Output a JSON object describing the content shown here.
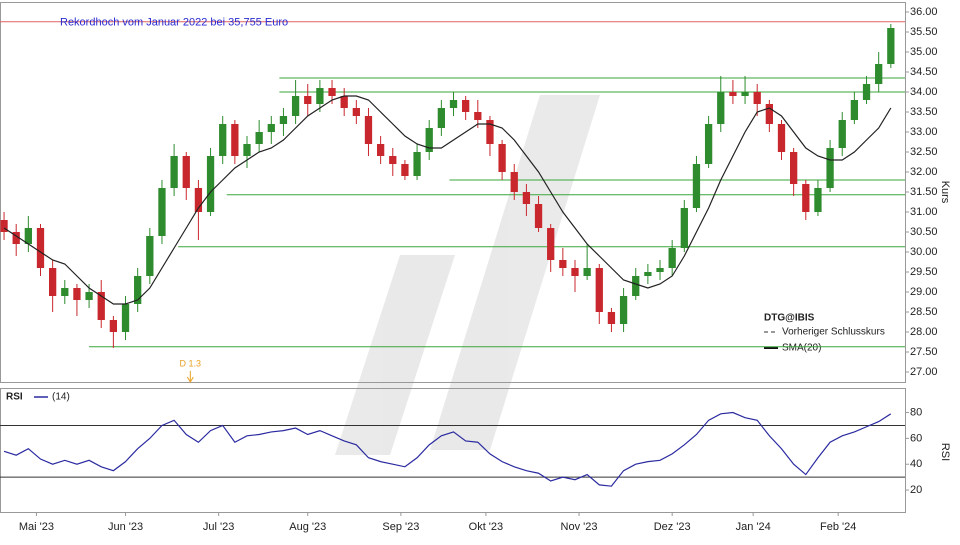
{
  "chart_data": {
    "type": "candlestick",
    "xlim": [
      0,
      223.5
    ],
    "xticks": [
      {
        "value": 9,
        "label": "Mai '23"
      },
      {
        "value": 31,
        "label": "Jun '23"
      },
      {
        "value": 54,
        "label": "Jul '23"
      },
      {
        "value": 76,
        "label": "Aug '23"
      },
      {
        "value": 99,
        "label": "Sep '23"
      },
      {
        "value": 120,
        "label": "Okt '23"
      },
      {
        "value": 143,
        "label": "Nov '23"
      },
      {
        "value": 166,
        "label": "Dez '23"
      },
      {
        "value": 186,
        "label": "Jan '24"
      },
      {
        "value": 207,
        "label": "Feb '24"
      }
    ],
    "ylim": [
      26.75,
      36.25
    ],
    "yticks": [
      {
        "value": 27,
        "label": "27.00"
      },
      {
        "value": 27.5,
        "label": "27.50"
      },
      {
        "value": 28,
        "label": "28.00"
      },
      {
        "value": 28.5,
        "label": "28.50"
      },
      {
        "value": 29,
        "label": "29.00"
      },
      {
        "value": 29.5,
        "label": "29.50"
      },
      {
        "value": 30,
        "label": "30.00"
      },
      {
        "value": 30.5,
        "label": "30.50"
      },
      {
        "value": 31,
        "label": "31.00"
      },
      {
        "value": 31.5,
        "label": "31.50"
      },
      {
        "value": 32,
        "label": "32.00"
      },
      {
        "value": 32.5,
        "label": "32.50"
      },
      {
        "value": 33,
        "label": "33.00"
      },
      {
        "value": 33.5,
        "label": "33.50"
      },
      {
        "value": 34,
        "label": "34.00"
      },
      {
        "value": 34.5,
        "label": "34.50"
      },
      {
        "value": 35,
        "label": "35.00"
      },
      {
        "value": 35.5,
        "label": "35.50"
      },
      {
        "value": 36,
        "label": "36.00"
      }
    ],
    "ylabel": "Kurs",
    "up_color": "#2e8b2e",
    "down_color": "#c8282d",
    "x": [
      1,
      4,
      7,
      10,
      13,
      16,
      19,
      22,
      25,
      28,
      31,
      34,
      37,
      40,
      43,
      46,
      49,
      52,
      55,
      58,
      61,
      64,
      67,
      70,
      73,
      76,
      79,
      82,
      85,
      88,
      91,
      94,
      97,
      100,
      103,
      106,
      109,
      112,
      115,
      118,
      121,
      124,
      127,
      130,
      133,
      136,
      139,
      142,
      145,
      148,
      151,
      154,
      157,
      160,
      163,
      166,
      169,
      172,
      175,
      178,
      181,
      184,
      187,
      190,
      193,
      196,
      199,
      202,
      205,
      208,
      211,
      214,
      217,
      220
    ],
    "open": [
      30.8,
      30.5,
      30.2,
      30.6,
      29.6,
      28.9,
      29.1,
      28.8,
      29.0,
      28.3,
      28.0,
      28.7,
      29.4,
      30.4,
      31.6,
      32.4,
      31.6,
      31.0,
      32.4,
      33.2,
      32.4,
      32.7,
      33.0,
      33.2,
      33.4,
      33.9,
      33.7,
      34.1,
      33.9,
      33.6,
      33.4,
      32.7,
      32.4,
      32.2,
      31.9,
      32.5,
      33.1,
      33.6,
      33.8,
      33.5,
      33.3,
      32.7,
      32.0,
      31.5,
      31.2,
      30.6,
      29.8,
      29.6,
      29.4,
      29.6,
      28.5,
      28.2,
      28.9,
      29.4,
      29.5,
      29.6,
      30.1,
      31.1,
      32.2,
      33.2,
      34.0,
      33.9,
      34.0,
      33.7,
      33.2,
      32.5,
      31.7,
      31.0,
      31.6,
      32.6,
      33.3,
      33.8,
      34.2,
      34.7
    ],
    "high": [
      31.0,
      30.7,
      30.9,
      30.7,
      29.8,
      29.3,
      29.2,
      29.2,
      29.3,
      28.4,
      28.9,
      29.6,
      30.6,
      31.8,
      32.7,
      32.5,
      31.8,
      32.6,
      33.4,
      33.3,
      32.9,
      33.3,
      33.4,
      33.6,
      34.3,
      34.2,
      34.3,
      34.3,
      34.1,
      33.8,
      33.6,
      32.9,
      32.6,
      32.3,
      32.7,
      33.3,
      33.8,
      34.0,
      33.9,
      33.8,
      33.4,
      32.8,
      32.2,
      31.7,
      31.4,
      30.7,
      30.1,
      29.8,
      30.2,
      29.7,
      28.6,
      29.1,
      29.6,
      29.7,
      29.8,
      30.3,
      31.3,
      32.4,
      33.4,
      34.4,
      34.3,
      34.4,
      34.2,
      33.8,
      33.3,
      32.6,
      31.8,
      31.8,
      32.8,
      33.5,
      34.0,
      34.4,
      35.0,
      35.7
    ],
    "low": [
      30.3,
      29.9,
      30.0,
      29.4,
      28.5,
      28.7,
      28.4,
      28.6,
      28.1,
      27.6,
      27.8,
      28.5,
      29.2,
      30.2,
      31.4,
      31.3,
      30.3,
      30.9,
      32.2,
      32.2,
      32.1,
      32.5,
      32.7,
      32.9,
      33.2,
      33.4,
      33.5,
      33.7,
      33.4,
      33.2,
      32.4,
      32.2,
      31.9,
      31.8,
      31.8,
      32.3,
      32.9,
      33.4,
      33.3,
      33.1,
      32.4,
      31.8,
      31.3,
      30.9,
      30.5,
      29.5,
      29.4,
      29.0,
      29.3,
      28.2,
      28.0,
      28.0,
      28.8,
      29.2,
      29.3,
      29.4,
      30.0,
      31.0,
      32.1,
      33.0,
      33.7,
      33.7,
      33.4,
      33.0,
      32.3,
      31.4,
      30.8,
      30.9,
      31.5,
      32.4,
      33.2,
      33.7,
      34.0,
      34.6
    ],
    "close": [
      30.5,
      30.2,
      30.6,
      29.6,
      28.9,
      29.1,
      28.8,
      29.0,
      28.3,
      28.0,
      28.7,
      29.4,
      30.4,
      31.6,
      32.4,
      31.6,
      31.0,
      32.4,
      33.2,
      32.4,
      32.7,
      33.0,
      33.2,
      33.4,
      33.9,
      33.7,
      34.1,
      33.9,
      33.6,
      33.4,
      32.7,
      32.4,
      32.2,
      31.9,
      32.5,
      33.1,
      33.6,
      33.8,
      33.5,
      33.3,
      32.7,
      32.0,
      31.5,
      31.2,
      30.6,
      29.8,
      29.6,
      29.4,
      29.6,
      28.5,
      28.2,
      28.9,
      29.4,
      29.5,
      29.6,
      30.1,
      31.1,
      32.2,
      33.2,
      34.0,
      33.9,
      34.0,
      33.7,
      33.2,
      32.5,
      31.7,
      31.0,
      31.6,
      32.6,
      33.3,
      33.8,
      34.2,
      34.7,
      35.6
    ],
    "sma": {
      "name": "SMA(20)",
      "color": "#222222",
      "values": [
        30.6,
        30.4,
        30.2,
        30.0,
        29.8,
        29.7,
        29.4,
        29.1,
        28.9,
        28.7,
        28.7,
        28.8,
        29.1,
        29.6,
        30.1,
        30.6,
        31.1,
        31.5,
        31.8,
        32.1,
        32.3,
        32.5,
        32.6,
        32.8,
        33.1,
        33.4,
        33.6,
        33.8,
        33.9,
        33.9,
        33.8,
        33.5,
        33.2,
        32.9,
        32.7,
        32.6,
        32.6,
        32.8,
        33.0,
        33.2,
        33.2,
        33.1,
        32.8,
        32.4,
        32.0,
        31.5,
        31.0,
        30.6,
        30.2,
        29.9,
        29.6,
        29.3,
        29.2,
        29.1,
        29.2,
        29.4,
        29.9,
        30.5,
        31.1,
        31.8,
        32.4,
        33.0,
        33.5,
        33.6,
        33.4,
        33.0,
        32.6,
        32.4,
        32.3,
        32.3,
        32.5,
        32.8,
        33.1,
        33.6
      ]
    },
    "record_line": {
      "value": 35.755,
      "label": "Rekordhoch vom Januar 2022 bei 35,755 Euro",
      "color": "#e06060"
    },
    "levels": {
      "color": "#3aa63a",
      "values": [
        34.35,
        34.0,
        31.8,
        31.43,
        30.13,
        27.63
      ],
      "x_start": [
        69,
        69,
        111,
        56,
        44,
        22
      ]
    },
    "event": {
      "x": 47,
      "label": "D 1.3",
      "color": "#e8a020"
    },
    "legend": {
      "title": "DTG@IBIS",
      "entries": [
        "Vorheriger Schlusskurs",
        "SMA(20)"
      ]
    },
    "rsi": {
      "title": "RSI",
      "name": "(14)",
      "color": "#2a2aa0",
      "ylim": [
        3,
        99
      ],
      "yticks": [
        20,
        40,
        60,
        80
      ],
      "ylabel": "RSI",
      "bands": [
        70,
        30
      ],
      "values": [
        50,
        47,
        52,
        44,
        40,
        43,
        40,
        43,
        38,
        35,
        42,
        52,
        60,
        70,
        74,
        63,
        57,
        66,
        70,
        57,
        62,
        63,
        65,
        66,
        68,
        63,
        66,
        62,
        58,
        55,
        45,
        42,
        40,
        38,
        45,
        55,
        62,
        65,
        58,
        57,
        48,
        42,
        38,
        35,
        33,
        27,
        30,
        28,
        32,
        24,
        23,
        35,
        40,
        42,
        43,
        48,
        55,
        63,
        74,
        79,
        80,
        76,
        74,
        62,
        52,
        40,
        32,
        45,
        57,
        62,
        65,
        69,
        73,
        79
      ]
    }
  }
}
